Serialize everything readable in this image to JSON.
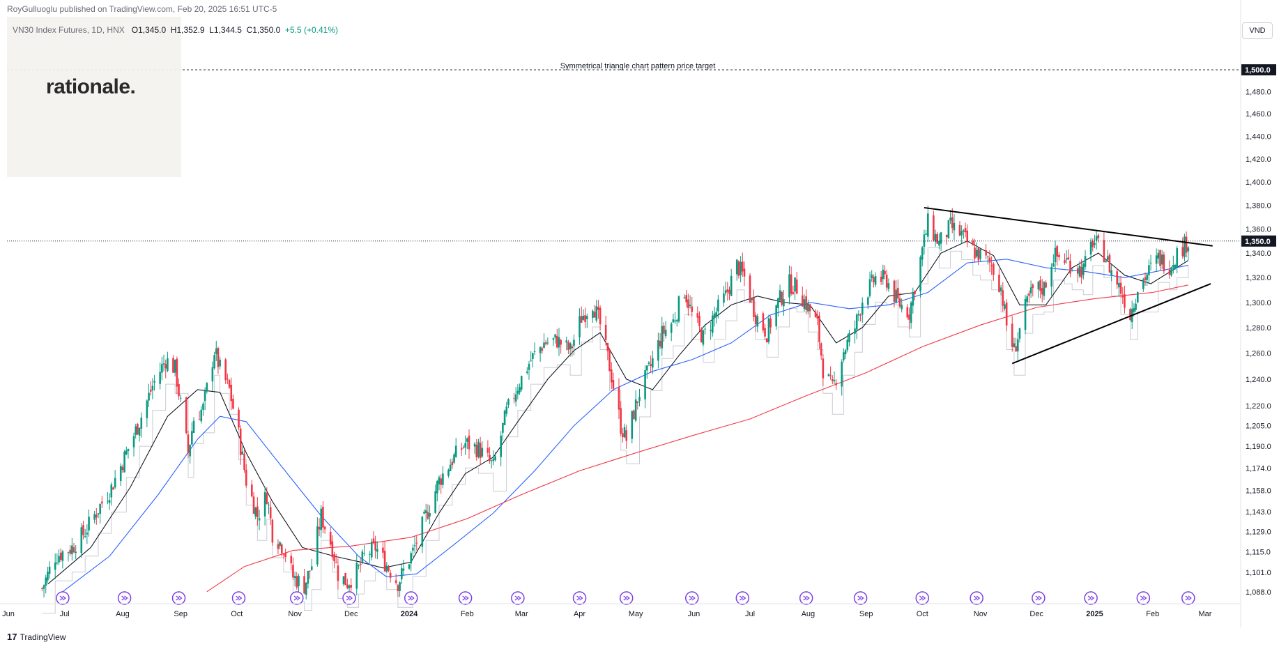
{
  "header": {
    "published_line": "RoyGulluoglu published on TradingView.com, Feb 20, 2025 16:51 UTC-5",
    "symbol_line": "VN30 Index Futures, 1D, HNX",
    "open": "O1,345.0",
    "high": "H1,352.9",
    "low": "L1,344.5",
    "close": "C1,350.0",
    "change": "+5.5 (+0.41%)"
  },
  "overlay": {
    "brand_text": "rationale."
  },
  "price_axis": {
    "currency": "VND",
    "target_label": "1,500.0",
    "last_price_label": "1,350.0"
  },
  "annotation": "Symmetrical triangle chart pattern price target",
  "footer": {
    "brand": "TradingView"
  },
  "colors": {
    "up": "#089981",
    "down": "#f23645",
    "sma_short": "#131722",
    "sma_mid": "#2962ff",
    "sma_long": "#f23645",
    "bars_ghost": "#c9ccd4"
  },
  "chart_data": {
    "type": "candlestick",
    "title": "",
    "scale": "logarithmic",
    "ylim": [
      1080,
      1530
    ],
    "target_price": 1500.0,
    "last_price": 1350.0,
    "y_ticks": [
      {
        "v": 1480,
        "label": "1,480.0"
      },
      {
        "v": 1460,
        "label": "1,460.0"
      },
      {
        "v": 1440,
        "label": "1,440.0"
      },
      {
        "v": 1420,
        "label": "1,420.0"
      },
      {
        "v": 1400,
        "label": "1,400.0"
      },
      {
        "v": 1380,
        "label": "1,380.0"
      },
      {
        "v": 1360,
        "label": "1,360.0"
      },
      {
        "v": 1340,
        "label": "1,340.0"
      },
      {
        "v": 1320,
        "label": "1,320.0"
      },
      {
        "v": 1300,
        "label": "1,300.0"
      },
      {
        "v": 1280,
        "label": "1,280.0"
      },
      {
        "v": 1260,
        "label": "1,260.0"
      },
      {
        "v": 1240,
        "label": "1,240.0"
      },
      {
        "v": 1220,
        "label": "1,220.0"
      },
      {
        "v": 1205,
        "label": "1,205.0"
      },
      {
        "v": 1190,
        "label": "1,190.0"
      },
      {
        "v": 1174,
        "label": "1,174.0"
      },
      {
        "v": 1158,
        "label": "1,158.0"
      },
      {
        "v": 1143,
        "label": "1,143.0"
      },
      {
        "v": 1129,
        "label": "1,129.0"
      },
      {
        "v": 1115,
        "label": "1,115.0"
      },
      {
        "v": 1101,
        "label": "1,101.0"
      },
      {
        "v": 1088,
        "label": "1,088.0"
      }
    ],
    "x_ticks": [
      {
        "date": "2023-06-01",
        "label": "Jun",
        "bold": false
      },
      {
        "date": "2023-07-01",
        "label": "Jul",
        "bold": false
      },
      {
        "date": "2023-08-01",
        "label": "Aug",
        "bold": false
      },
      {
        "date": "2023-09-01",
        "label": "Sep",
        "bold": false
      },
      {
        "date": "2023-10-01",
        "label": "Oct",
        "bold": false
      },
      {
        "date": "2023-11-01",
        "label": "Nov",
        "bold": false
      },
      {
        "date": "2023-12-01",
        "label": "Dec",
        "bold": false
      },
      {
        "date": "2024-01-01",
        "label": "2024",
        "bold": true
      },
      {
        "date": "2024-02-01",
        "label": "Feb",
        "bold": false
      },
      {
        "date": "2024-03-01",
        "label": "Mar",
        "bold": false
      },
      {
        "date": "2024-04-01",
        "label": "Apr",
        "bold": false
      },
      {
        "date": "2024-05-01",
        "label": "May",
        "bold": false
      },
      {
        "date": "2024-06-01",
        "label": "Jun",
        "bold": false
      },
      {
        "date": "2024-07-01",
        "label": "Jul",
        "bold": false
      },
      {
        "date": "2024-08-01",
        "label": "Aug",
        "bold": false
      },
      {
        "date": "2024-09-01",
        "label": "Sep",
        "bold": false
      },
      {
        "date": "2024-10-01",
        "label": "Oct",
        "bold": false
      },
      {
        "date": "2024-11-01",
        "label": "Nov",
        "bold": false
      },
      {
        "date": "2024-12-01",
        "label": "Dec",
        "bold": false
      },
      {
        "date": "2025-01-01",
        "label": "2025",
        "bold": true
      },
      {
        "date": "2025-02-01",
        "label": "Feb",
        "bold": false
      },
      {
        "date": "2025-03-01",
        "label": "Mar",
        "bold": false
      }
    ],
    "trendlines": [
      {
        "name": "upper",
        "from": {
          "date": "2024-10-02",
          "price": 1378
        },
        "to": {
          "date": "2025-03-05",
          "price": 1346
        }
      },
      {
        "name": "lower",
        "from": {
          "date": "2024-11-18",
          "price": 1252
        },
        "to": {
          "date": "2025-03-04",
          "price": 1315
        }
      }
    ],
    "event_markers": [
      "2023-06-30",
      "2023-08-02",
      "2023-08-31",
      "2023-10-02",
      "2023-11-02",
      "2023-11-30",
      "2024-01-02",
      "2024-01-31",
      "2024-02-28",
      "2024-04-01",
      "2024-04-26",
      "2024-05-31",
      "2024-06-27",
      "2024-07-31",
      "2024-08-29",
      "2024-10-01",
      "2024-10-30",
      "2024-12-02",
      "2024-12-30",
      "2025-01-27",
      "2025-02-20"
    ],
    "close_series": {
      "name": "VN30 Index Futures",
      "points": [
        [
          "2023-06-19",
          1090
        ],
        [
          "2023-06-26",
          1112
        ],
        [
          "2023-07-05",
          1118
        ],
        [
          "2023-07-12",
          1129
        ],
        [
          "2023-07-19",
          1145
        ],
        [
          "2023-07-26",
          1160
        ],
        [
          "2023-08-03",
          1185
        ],
        [
          "2023-08-10",
          1208
        ],
        [
          "2023-08-17",
          1235
        ],
        [
          "2023-08-24",
          1255
        ],
        [
          "2023-08-29",
          1248
        ],
        [
          "2023-09-05",
          1185
        ],
        [
          "2023-09-08",
          1210
        ],
        [
          "2023-09-13",
          1218
        ],
        [
          "2023-09-19",
          1262
        ],
        [
          "2023-09-22",
          1248
        ],
        [
          "2023-09-27",
          1232
        ],
        [
          "2023-10-02",
          1198
        ],
        [
          "2023-10-06",
          1165
        ],
        [
          "2023-10-12",
          1140
        ],
        [
          "2023-10-17",
          1155
        ],
        [
          "2023-10-20",
          1128
        ],
        [
          "2023-10-26",
          1118
        ],
        [
          "2023-10-31",
          1098
        ],
        [
          "2023-11-06",
          1092
        ],
        [
          "2023-11-10",
          1106
        ],
        [
          "2023-11-15",
          1140
        ],
        [
          "2023-11-21",
          1118
        ],
        [
          "2023-11-24",
          1100
        ],
        [
          "2023-11-29",
          1094
        ],
        [
          "2023-12-05",
          1103
        ],
        [
          "2023-12-08",
          1112
        ],
        [
          "2023-12-14",
          1118
        ],
        [
          "2023-12-20",
          1106
        ],
        [
          "2023-12-26",
          1094
        ],
        [
          "2024-01-03",
          1115
        ],
        [
          "2024-01-10",
          1140
        ],
        [
          "2024-01-17",
          1165
        ],
        [
          "2024-01-24",
          1180
        ],
        [
          "2024-01-31",
          1192
        ],
        [
          "2024-02-07",
          1188
        ],
        [
          "2024-02-15",
          1175
        ],
        [
          "2024-02-22",
          1215
        ],
        [
          "2024-02-28",
          1235
        ],
        [
          "2024-03-06",
          1255
        ],
        [
          "2024-03-13",
          1268
        ],
        [
          "2024-03-20",
          1270
        ],
        [
          "2024-03-27",
          1262
        ],
        [
          "2024-04-02",
          1288
        ],
        [
          "2024-04-08",
          1300
        ],
        [
          "2024-04-12",
          1282
        ],
        [
          "2024-04-17",
          1250
        ],
        [
          "2024-04-23",
          1205
        ],
        [
          "2024-04-26",
          1195
        ],
        [
          "2024-05-03",
          1230
        ],
        [
          "2024-05-09",
          1250
        ],
        [
          "2024-05-15",
          1275
        ],
        [
          "2024-05-21",
          1285
        ],
        [
          "2024-05-27",
          1310
        ],
        [
          "2024-05-31",
          1290
        ],
        [
          "2024-06-06",
          1272
        ],
        [
          "2024-06-12",
          1290
        ],
        [
          "2024-06-18",
          1305
        ],
        [
          "2024-06-24",
          1330
        ],
        [
          "2024-06-28",
          1320
        ],
        [
          "2024-07-04",
          1290
        ],
        [
          "2024-07-10",
          1276
        ],
        [
          "2024-07-16",
          1300
        ],
        [
          "2024-07-22",
          1315
        ],
        [
          "2024-07-26",
          1312
        ],
        [
          "2024-08-01",
          1296
        ],
        [
          "2024-08-06",
          1282
        ],
        [
          "2024-08-09",
          1248
        ],
        [
          "2024-08-14",
          1232
        ],
        [
          "2024-08-20",
          1262
        ],
        [
          "2024-08-26",
          1280
        ],
        [
          "2024-08-30",
          1302
        ],
        [
          "2024-09-06",
          1320
        ],
        [
          "2024-09-12",
          1318
        ],
        [
          "2024-09-18",
          1300
        ],
        [
          "2024-09-24",
          1292
        ],
        [
          "2024-09-30",
          1335
        ],
        [
          "2024-10-04",
          1365
        ],
        [
          "2024-10-10",
          1348
        ],
        [
          "2024-10-16",
          1362
        ],
        [
          "2024-10-22",
          1355
        ],
        [
          "2024-10-28",
          1342
        ],
        [
          "2024-11-01",
          1338
        ],
        [
          "2024-11-07",
          1330
        ],
        [
          "2024-11-12",
          1312
        ],
        [
          "2024-11-15",
          1282
        ],
        [
          "2024-11-19",
          1262
        ],
        [
          "2024-11-25",
          1295
        ],
        [
          "2024-11-29",
          1310
        ],
        [
          "2024-12-05",
          1312
        ],
        [
          "2024-12-10",
          1338
        ],
        [
          "2024-12-16",
          1335
        ],
        [
          "2024-12-20",
          1330
        ],
        [
          "2024-12-26",
          1326
        ],
        [
          "2024-12-31",
          1350
        ],
        [
          "2025-01-06",
          1340
        ],
        [
          "2025-01-10",
          1325
        ],
        [
          "2025-01-15",
          1310
        ],
        [
          "2025-01-20",
          1290
        ],
        [
          "2025-01-24",
          1312
        ],
        [
          "2025-02-04",
          1336
        ],
        [
          "2025-02-10",
          1330
        ],
        [
          "2025-02-14",
          1340
        ],
        [
          "2025-02-20",
          1350
        ]
      ]
    },
    "moving_averages": [
      {
        "name": "SMA short",
        "color": "#131722",
        "points": [
          [
            "2023-06-22",
            1093
          ],
          [
            "2023-07-15",
            1118
          ],
          [
            "2023-08-05",
            1160
          ],
          [
            "2023-08-25",
            1212
          ],
          [
            "2023-09-10",
            1232
          ],
          [
            "2023-09-22",
            1230
          ],
          [
            "2023-10-06",
            1185
          ],
          [
            "2023-10-20",
            1150
          ],
          [
            "2023-11-05",
            1118
          ],
          [
            "2023-11-22",
            1112
          ],
          [
            "2023-12-06",
            1108
          ],
          [
            "2023-12-18",
            1104
          ],
          [
            "2024-01-02",
            1108
          ],
          [
            "2024-01-17",
            1142
          ],
          [
            "2024-01-31",
            1170
          ],
          [
            "2024-02-15",
            1182
          ],
          [
            "2024-02-28",
            1208
          ],
          [
            "2024-03-15",
            1240
          ],
          [
            "2024-03-29",
            1262
          ],
          [
            "2024-04-12",
            1276
          ],
          [
            "2024-04-26",
            1240
          ],
          [
            "2024-05-10",
            1232
          ],
          [
            "2024-05-24",
            1258
          ],
          [
            "2024-06-07",
            1282
          ],
          [
            "2024-06-21",
            1298
          ],
          [
            "2024-07-05",
            1305
          ],
          [
            "2024-07-19",
            1300
          ],
          [
            "2024-08-02",
            1298
          ],
          [
            "2024-08-16",
            1268
          ],
          [
            "2024-08-30",
            1280
          ],
          [
            "2024-09-13",
            1305
          ],
          [
            "2024-09-27",
            1308
          ],
          [
            "2024-10-11",
            1340
          ],
          [
            "2024-10-25",
            1350
          ],
          [
            "2024-11-08",
            1338
          ],
          [
            "2024-11-22",
            1298
          ],
          [
            "2024-12-06",
            1298
          ],
          [
            "2024-12-20",
            1328
          ],
          [
            "2025-01-03",
            1340
          ],
          [
            "2025-01-17",
            1322
          ],
          [
            "2025-01-31",
            1315
          ],
          [
            "2025-02-20",
            1334
          ]
        ]
      },
      {
        "name": "SMA mid",
        "color": "#2962ff",
        "points": [
          [
            "2023-06-30",
            1088
          ],
          [
            "2023-07-25",
            1112
          ],
          [
            "2023-08-20",
            1155
          ],
          [
            "2023-09-10",
            1195
          ],
          [
            "2023-09-22",
            1212
          ],
          [
            "2023-10-06",
            1208
          ],
          [
            "2023-10-25",
            1175
          ],
          [
            "2023-11-15",
            1140
          ],
          [
            "2023-12-05",
            1112
          ],
          [
            "2023-12-20",
            1098
          ],
          [
            "2024-01-05",
            1100
          ],
          [
            "2024-01-25",
            1120
          ],
          [
            "2024-02-15",
            1142
          ],
          [
            "2024-03-08",
            1172
          ],
          [
            "2024-03-29",
            1205
          ],
          [
            "2024-04-19",
            1232
          ],
          [
            "2024-05-10",
            1246
          ],
          [
            "2024-05-31",
            1255
          ],
          [
            "2024-06-21",
            1268
          ],
          [
            "2024-07-12",
            1290
          ],
          [
            "2024-08-02",
            1300
          ],
          [
            "2024-08-23",
            1295
          ],
          [
            "2024-09-13",
            1298
          ],
          [
            "2024-10-04",
            1308
          ],
          [
            "2024-10-25",
            1332
          ],
          [
            "2024-11-15",
            1335
          ],
          [
            "2024-12-06",
            1328
          ],
          [
            "2024-12-27",
            1325
          ],
          [
            "2025-01-17",
            1320
          ],
          [
            "2025-02-20",
            1330
          ]
        ]
      },
      {
        "name": "SMA long",
        "color": "#f23645",
        "points": [
          [
            "2023-09-15",
            1088
          ],
          [
            "2023-10-05",
            1105
          ],
          [
            "2023-10-31",
            1116
          ],
          [
            "2023-12-01",
            1119
          ],
          [
            "2024-01-02",
            1125
          ],
          [
            "2024-02-01",
            1138
          ],
          [
            "2024-03-01",
            1155
          ],
          [
            "2024-04-01",
            1172
          ],
          [
            "2024-05-01",
            1185
          ],
          [
            "2024-06-01",
            1198
          ],
          [
            "2024-07-01",
            1210
          ],
          [
            "2024-08-01",
            1228
          ],
          [
            "2024-09-01",
            1245
          ],
          [
            "2024-10-01",
            1265
          ],
          [
            "2024-11-01",
            1282
          ],
          [
            "2024-12-01",
            1296
          ],
          [
            "2025-01-01",
            1303
          ],
          [
            "2025-02-01",
            1308
          ],
          [
            "2025-02-20",
            1314
          ]
        ]
      }
    ]
  }
}
